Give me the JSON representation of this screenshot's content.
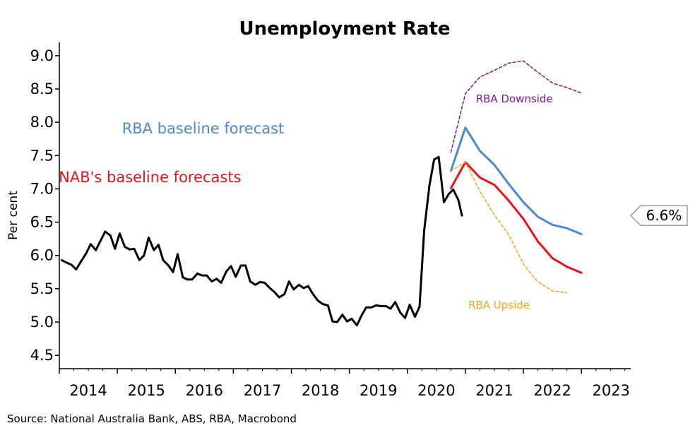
{
  "chart_data": {
    "type": "line",
    "title": "Unemployment Rate",
    "ylabel": "Per cent",
    "xlabel": "",
    "ylim": [
      4.3,
      9.2
    ],
    "xlim": [
      2013.5,
      2023.35
    ],
    "yticks": [
      "4.5",
      "5.0",
      "5.5",
      "6.0",
      "6.5",
      "7.0",
      "7.5",
      "8.0",
      "8.5",
      "9.0"
    ],
    "xtick_labels": [
      "2014",
      "2015",
      "2016",
      "2017",
      "2018",
      "2019",
      "2020",
      "2021",
      "2022",
      "2023"
    ],
    "x_major_ticks": [
      2013.5,
      2014.5,
      2015.5,
      2016.5,
      2017.5,
      2018.5,
      2019.5,
      2020.5,
      2021.5,
      2022.5
    ],
    "grid": false,
    "source": "Source: National Australia Bank, ABS, RBA, Macrobond",
    "last_value_tag": "6.6%",
    "last_value": 6.6,
    "series": [
      {
        "key": "actual",
        "color": "#000000",
        "style": "solid",
        "points": [
          [
            2013.54,
            5.93
          ],
          [
            2013.63,
            5.89
          ],
          [
            2013.71,
            5.86
          ],
          [
            2013.79,
            5.79
          ],
          [
            2013.88,
            5.92
          ],
          [
            2013.96,
            6.03
          ],
          [
            2014.04,
            6.17
          ],
          [
            2014.13,
            6.08
          ],
          [
            2014.21,
            6.22
          ],
          [
            2014.29,
            6.36
          ],
          [
            2014.38,
            6.3
          ],
          [
            2014.46,
            6.1
          ],
          [
            2014.54,
            6.33
          ],
          [
            2014.63,
            6.13
          ],
          [
            2014.71,
            6.09
          ],
          [
            2014.79,
            6.1
          ],
          [
            2014.88,
            5.93
          ],
          [
            2014.96,
            6.0
          ],
          [
            2015.04,
            6.27
          ],
          [
            2015.13,
            6.08
          ],
          [
            2015.21,
            6.16
          ],
          [
            2015.29,
            5.93
          ],
          [
            2015.38,
            5.85
          ],
          [
            2015.46,
            5.75
          ],
          [
            2015.54,
            6.02
          ],
          [
            2015.63,
            5.67
          ],
          [
            2015.71,
            5.64
          ],
          [
            2015.79,
            5.64
          ],
          [
            2015.88,
            5.73
          ],
          [
            2015.96,
            5.7
          ],
          [
            2016.04,
            5.7
          ],
          [
            2016.13,
            5.61
          ],
          [
            2016.21,
            5.65
          ],
          [
            2016.29,
            5.59
          ],
          [
            2016.38,
            5.76
          ],
          [
            2016.46,
            5.84
          ],
          [
            2016.54,
            5.68
          ],
          [
            2016.63,
            5.85
          ],
          [
            2016.71,
            5.85
          ],
          [
            2016.79,
            5.61
          ],
          [
            2016.88,
            5.56
          ],
          [
            2016.96,
            5.6
          ],
          [
            2017.04,
            5.59
          ],
          [
            2017.13,
            5.51
          ],
          [
            2017.21,
            5.45
          ],
          [
            2017.29,
            5.37
          ],
          [
            2017.38,
            5.42
          ],
          [
            2017.46,
            5.61
          ],
          [
            2017.54,
            5.49
          ],
          [
            2017.63,
            5.56
          ],
          [
            2017.71,
            5.51
          ],
          [
            2017.79,
            5.54
          ],
          [
            2017.88,
            5.41
          ],
          [
            2017.96,
            5.32
          ],
          [
            2018.04,
            5.27
          ],
          [
            2018.13,
            5.25
          ],
          [
            2018.21,
            5.01
          ],
          [
            2018.29,
            5.0
          ],
          [
            2018.38,
            5.11
          ],
          [
            2018.46,
            5.01
          ],
          [
            2018.54,
            5.05
          ],
          [
            2018.63,
            4.95
          ],
          [
            2018.71,
            5.1
          ],
          [
            2018.79,
            5.22
          ],
          [
            2018.88,
            5.22
          ],
          [
            2018.96,
            5.25
          ],
          [
            2019.04,
            5.24
          ],
          [
            2019.13,
            5.24
          ],
          [
            2019.21,
            5.2
          ],
          [
            2019.29,
            5.3
          ],
          [
            2019.38,
            5.14
          ],
          [
            2019.46,
            5.06
          ],
          [
            2019.54,
            5.26
          ],
          [
            2019.63,
            5.08
          ],
          [
            2019.71,
            5.23
          ],
          [
            2019.79,
            6.38
          ],
          [
            2019.88,
            7.05
          ],
          [
            2019.96,
            7.44
          ],
          [
            2020.04,
            7.48
          ],
          [
            2020.13,
            6.8
          ],
          [
            2020.21,
            6.92
          ],
          [
            2020.29,
            6.99
          ],
          [
            2020.38,
            6.83
          ],
          [
            2020.44,
            6.6
          ]
        ]
      },
      {
        "key": "rba_baseline",
        "name": "RBA baseline forecast",
        "color": "#4a88d4",
        "style": "solid",
        "points": [
          [
            2020.25,
            7.27
          ],
          [
            2020.5,
            7.92
          ],
          [
            2020.75,
            7.57
          ],
          [
            2021.0,
            7.36
          ],
          [
            2021.25,
            7.07
          ],
          [
            2021.5,
            6.8
          ],
          [
            2021.75,
            6.58
          ],
          [
            2022.0,
            6.46
          ],
          [
            2022.25,
            6.41
          ],
          [
            2022.5,
            6.32
          ]
        ]
      },
      {
        "key": "nab",
        "name": "NAB's baseline forecasts",
        "color": "#e8121a",
        "style": "solid",
        "points": [
          [
            2020.25,
            7.01
          ],
          [
            2020.5,
            7.4
          ],
          [
            2020.75,
            7.17
          ],
          [
            2021.0,
            7.06
          ],
          [
            2021.25,
            6.82
          ],
          [
            2021.5,
            6.55
          ],
          [
            2021.75,
            6.21
          ],
          [
            2022.0,
            5.96
          ],
          [
            2022.25,
            5.83
          ],
          [
            2022.5,
            5.74
          ]
        ]
      },
      {
        "key": "rba_downside",
        "name": "RBA Downside",
        "color": "#7a1a86",
        "style": "dashed",
        "points": [
          [
            2020.25,
            7.55
          ],
          [
            2020.5,
            8.43
          ],
          [
            2020.75,
            8.68
          ],
          [
            2021.0,
            8.78
          ],
          [
            2021.25,
            8.89
          ],
          [
            2021.5,
            8.92
          ],
          [
            2021.75,
            8.75
          ],
          [
            2022.0,
            8.59
          ],
          [
            2022.25,
            8.52
          ],
          [
            2022.5,
            8.44
          ]
        ]
      },
      {
        "key": "rba_upside",
        "name": "RBA Upside",
        "color": "#f2a61e",
        "style": "dashed",
        "points": [
          [
            2020.25,
            7.27
          ],
          [
            2020.5,
            7.4
          ],
          [
            2020.75,
            6.96
          ],
          [
            2021.0,
            6.61
          ],
          [
            2021.25,
            6.31
          ],
          [
            2021.5,
            5.87
          ],
          [
            2021.75,
            5.6
          ],
          [
            2022.0,
            5.47
          ],
          [
            2022.25,
            5.44
          ]
        ]
      }
    ],
    "annotations": [
      {
        "key": "rba_baseline",
        "text": "RBA baseline forecast",
        "color": "#4a88d4",
        "x": 2014.58,
        "y": 7.83,
        "size": "large"
      },
      {
        "key": "nab",
        "text": "NAB's baseline forecasts",
        "color": "#e8121a",
        "x": 2013.49,
        "y": 7.1,
        "size": "large"
      },
      {
        "key": "rba_downside",
        "text": "RBA Downside",
        "color": "#7a1a86",
        "x": 2020.68,
        "y": 8.3,
        "size": "small"
      },
      {
        "key": "rba_upside",
        "text": "RBA Upside",
        "color": "#f2a61e",
        "x": 2020.55,
        "y": 5.2,
        "size": "small"
      }
    ]
  }
}
